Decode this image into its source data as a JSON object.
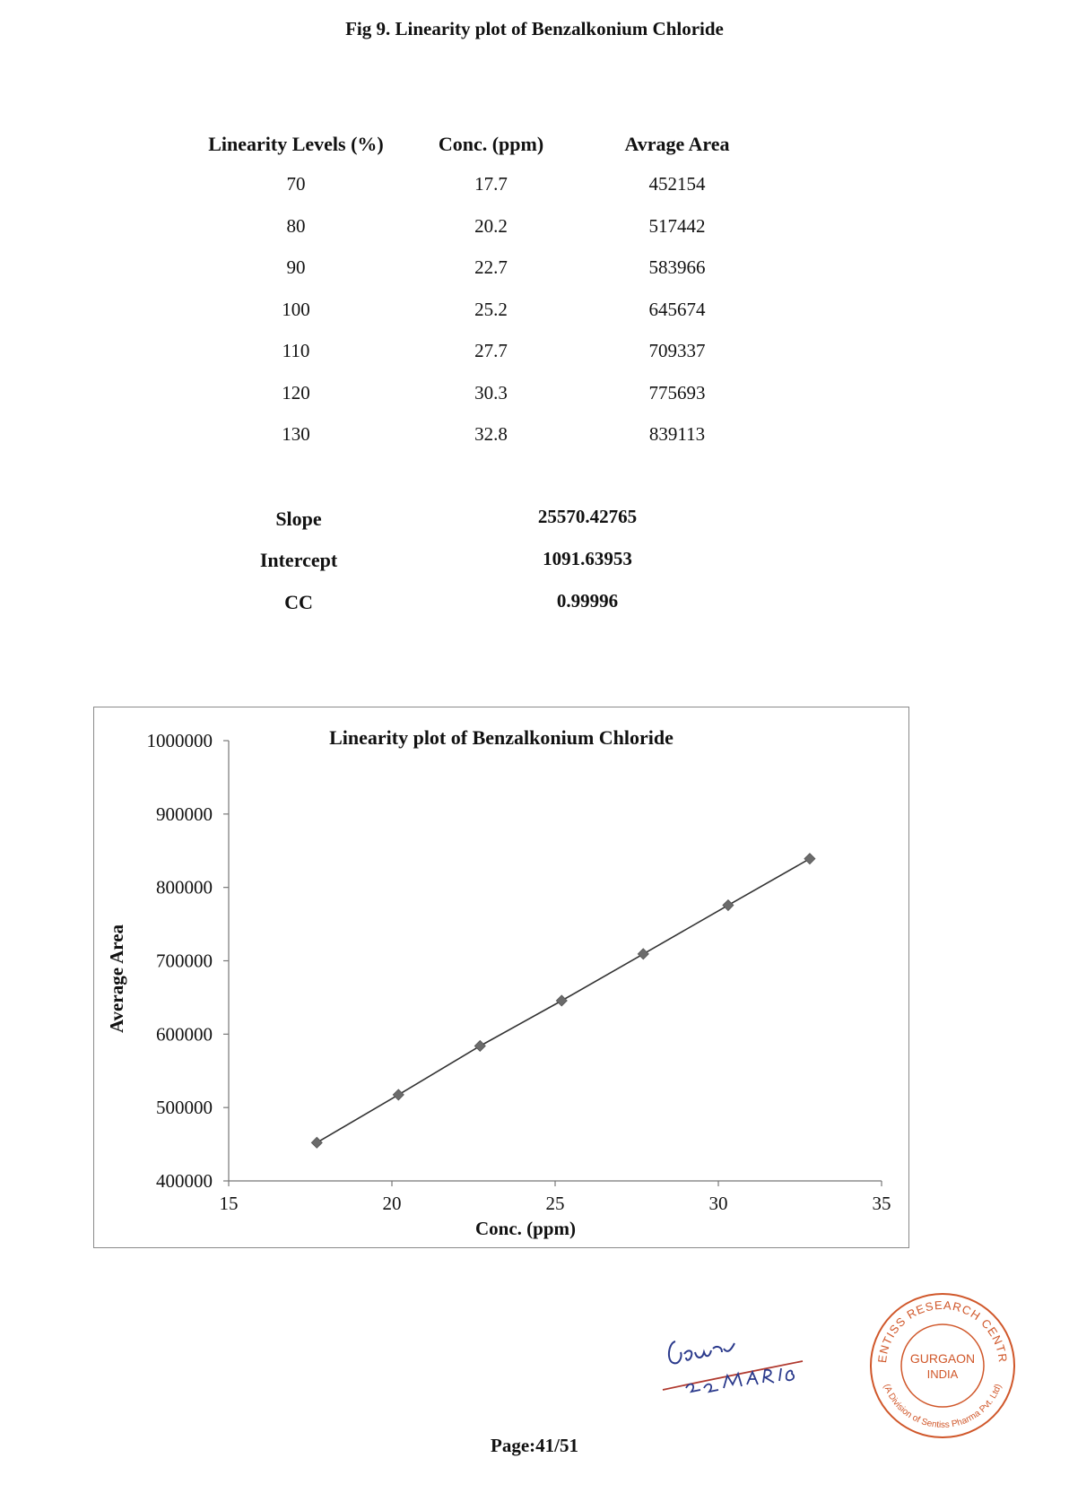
{
  "figure_title": "Fig 9. Linearity plot of Benzalkonium Chloride",
  "table": {
    "headers": [
      "Linearity Levels (%)",
      "Conc. (ppm)",
      "Avrage Area"
    ],
    "rows": [
      [
        "70",
        "17.7",
        "452154"
      ],
      [
        "80",
        "20.2",
        "517442"
      ],
      [
        "90",
        "22.7",
        "583966"
      ],
      [
        "100",
        "25.2",
        "645674"
      ],
      [
        "110",
        "27.7",
        "709337"
      ],
      [
        "120",
        "30.3",
        "775693"
      ],
      [
        "130",
        "32.8",
        "839113"
      ]
    ]
  },
  "stats": [
    {
      "label": "Slope",
      "value": "25570.42765"
    },
    {
      "label": "Intercept",
      "value": "1091.63953"
    },
    {
      "label": "CC",
      "value": "0.99996"
    }
  ],
  "chart_data": {
    "type": "line",
    "title": "Linearity plot of Benzalkonium Chloride",
    "xlabel": "Conc. (ppm)",
    "ylabel": "Average Area",
    "xlim": [
      15,
      35
    ],
    "ylim": [
      400000,
      1000000
    ],
    "xticks": [
      "15",
      "20",
      "25",
      "30",
      "35"
    ],
    "yticks": [
      "400000",
      "500000",
      "600000",
      "700000",
      "800000",
      "900000",
      "1000000"
    ],
    "x": [
      17.7,
      20.2,
      22.7,
      25.2,
      27.7,
      30.3,
      32.8
    ],
    "y": [
      452154,
      517442,
      583966,
      645674,
      709337,
      775693,
      839113
    ],
    "grid": false,
    "marker": "diamond",
    "line_color": "#333333",
    "marker_color": "#6b6b6b"
  },
  "signature": {
    "text_line1": "Gaurav",
    "text_line2": "22MAR16"
  },
  "seal": {
    "top_text": "SENTISS RESEARCH CENTRE",
    "bottom_text": "(A Division of Sentiss Pharma Pvt. Ltd)",
    "center_line1": "GURGAON",
    "center_line2": "INDIA",
    "color": "#d0572a"
  },
  "page_number": "Page:41/51"
}
